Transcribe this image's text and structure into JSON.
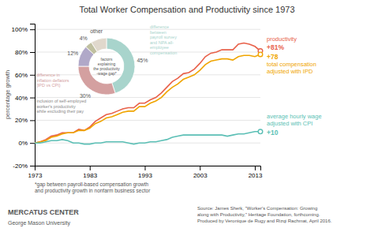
{
  "chart_data": [
    {
      "type": "line",
      "title": "Total Worker Compensation and Productivity since 1973",
      "y_label": "percentage growth",
      "x": [
        1973,
        1974,
        1975,
        1976,
        1977,
        1978,
        1979,
        1980,
        1981,
        1982,
        1983,
        1984,
        1985,
        1986,
        1987,
        1988,
        1989,
        1990,
        1991,
        1992,
        1993,
        1994,
        1995,
        1996,
        1997,
        1998,
        1999,
        2000,
        2001,
        2002,
        2003,
        2004,
        2005,
        2006,
        2007,
        2008,
        2009,
        2010,
        2011,
        2012,
        2013,
        2014
      ],
      "series": [
        {
          "name": "productivity",
          "color": "#e8614a",
          "values": [
            0,
            1,
            3,
            6,
            7,
            9,
            9,
            9,
            12,
            11,
            14,
            19,
            22,
            25,
            26,
            28,
            30,
            31,
            31,
            35,
            35,
            38,
            40,
            44,
            49,
            54,
            57,
            61,
            62,
            65,
            70,
            76,
            79,
            80,
            82,
            82,
            82,
            87,
            88,
            87,
            85,
            81
          ]
        },
        {
          "name": "total compensation\nadjusted with IPD",
          "color": "#f0a500",
          "values": [
            0,
            1,
            2,
            5,
            6,
            8,
            9,
            9,
            11,
            11,
            13,
            17,
            19,
            22,
            23,
            25,
            27,
            28,
            28,
            32,
            32,
            35,
            37,
            40,
            45,
            49,
            52,
            56,
            58,
            60,
            64,
            69,
            72,
            73,
            74,
            74,
            73,
            76,
            77,
            77,
            76,
            78
          ]
        },
        {
          "name": "average hourly wage\nadjusted with CPI",
          "color": "#5bbfb5",
          "values": [
            0,
            0,
            1,
            2,
            2,
            3,
            2,
            0,
            0,
            -1,
            -1,
            0,
            0,
            1,
            1,
            1,
            1,
            0,
            -1,
            0,
            0,
            1,
            1,
            2,
            3,
            5,
            6,
            7,
            7,
            7,
            7,
            7,
            7,
            7,
            7,
            6,
            7,
            8,
            8,
            9,
            10,
            10
          ]
        }
      ],
      "xlim": [
        1973,
        2014
      ],
      "xticks": [
        1973,
        1983,
        1993,
        2003,
        2013
      ],
      "ylim": [
        -20,
        105
      ],
      "yticks": [
        {
          "value": -20,
          "label": "-20%"
        },
        {
          "value": 0,
          "label": "0%"
        },
        {
          "value": 20,
          "label": "20%"
        },
        {
          "value": 40,
          "label": "40%"
        },
        {
          "value": 60,
          "label": "60%"
        },
        {
          "value": 80,
          "label": "80%"
        },
        {
          "value": 100,
          "label": "100%"
        }
      ],
      "grid": true,
      "annotations": [
        {
          "text": "+81%",
          "color": "#e8614a"
        },
        {
          "text": "+78",
          "color": "#f0a500"
        },
        {
          "text": "+10",
          "color": "#5bbfb5"
        },
        {
          "text": "*gap between payroll-based compensation growth\nand productivity growth in nonfarm business sector"
        },
        {
          "text": "Source: James Sherk, \"Worker's Compensation: Growing\nalong with Productivity,\" Heritage Foundation, forthcoming.\nProduced by Veronique de Rugy and Rizqi Rachmat, April 2016."
        },
        {
          "text": "MERCATUS CENTER"
        },
        {
          "text": "George Mason University"
        }
      ]
    },
    {
      "type": "pie",
      "title": "factors\nexplaining\nthe productivity\n-wage gap*",
      "categories": [
        null,
        null,
        null,
        null,
        "other"
      ],
      "values": [
        45,
        30,
        12,
        4,
        9
      ],
      "value_labels": [
        "45%",
        "30%",
        "12%",
        "4%",
        null
      ],
      "data_labels": true,
      "colors": [
        "#a8d4cc",
        "#d4a0a0",
        "#b0a8c8",
        "#c0c0a0",
        "#e0d8cc"
      ],
      "annotations": [
        {
          "text": "difference\nbetween\npayroll survey\nand NPA all-\nemployee\ncompensation",
          "color": "#a8d4cc"
        },
        {
          "text": "difference in\ninflation deflators\n(IPD vs CPI)",
          "color": "#d4a0a0"
        },
        {
          "text": "inclusion of self-employed\nworker's productivity\nwhile excluding their pay",
          "color": "#888888"
        }
      ]
    }
  ]
}
